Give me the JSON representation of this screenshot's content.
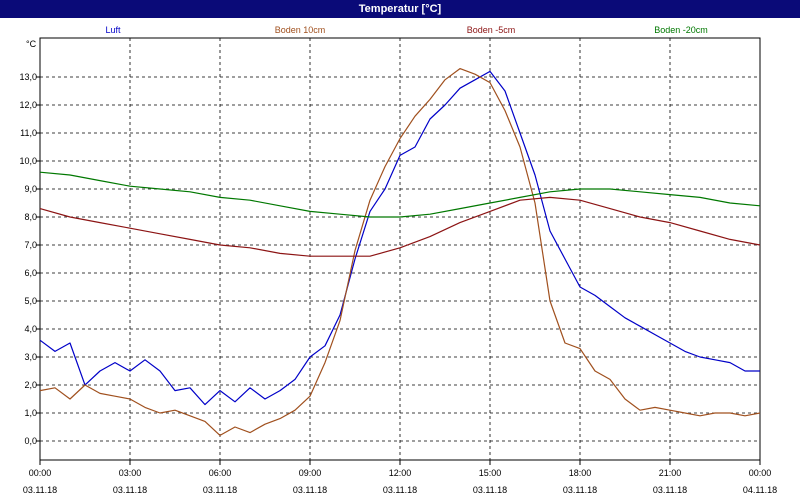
{
  "window": {
    "title": "Temperatur [°C]"
  },
  "chart_data": {
    "type": "line",
    "title": "Temperatur [°C]",
    "ylabel": "°C",
    "ylim": [
      -1,
      14
    ],
    "xlim_hours": [
      0,
      24
    ],
    "grid": true,
    "legend_placement": "top",
    "y_ticks": [
      "0,0",
      "1,0",
      "2,0",
      "3,0",
      "4,0",
      "5,0",
      "6,0",
      "7,0",
      "8,0",
      "9,0",
      "10,0",
      "11,0",
      "12,0",
      "13,0"
    ],
    "x_ticks": [
      {
        "time": "00:00",
        "date": "03.11.18"
      },
      {
        "time": "03:00",
        "date": "03.11.18"
      },
      {
        "time": "06:00",
        "date": "03.11.18"
      },
      {
        "time": "09:00",
        "date": "03.11.18"
      },
      {
        "time": "12:00",
        "date": "03.11.18"
      },
      {
        "time": "15:00",
        "date": "03.11.18"
      },
      {
        "time": "18:00",
        "date": "03.11.18"
      },
      {
        "time": "21:00",
        "date": "03.11.18"
      },
      {
        "time": "00:00",
        "date": "04.11.18"
      }
    ],
    "series": [
      {
        "name": "Luft",
        "color": "#0000c8",
        "x": [
          0,
          0.5,
          1,
          1.5,
          2,
          2.5,
          3,
          3.5,
          4,
          4.5,
          5,
          5.5,
          6,
          6.5,
          7,
          7.5,
          8,
          8.5,
          9,
          9.5,
          10,
          10.5,
          11,
          11.5,
          12,
          12.5,
          13,
          13.5,
          14,
          14.5,
          15,
          15.5,
          16,
          16.5,
          17,
          17.5,
          18,
          18.5,
          19,
          19.5,
          20,
          20.5,
          21,
          21.5,
          22,
          22.5,
          23,
          23.5,
          24
        ],
        "y": [
          3.6,
          3.2,
          3.5,
          2.0,
          2.5,
          2.8,
          2.5,
          2.9,
          2.5,
          1.8,
          1.9,
          1.3,
          1.8,
          1.4,
          1.9,
          1.5,
          1.8,
          2.2,
          3.0,
          3.4,
          4.5,
          6.5,
          8.2,
          9.0,
          10.2,
          10.5,
          11.5,
          12.0,
          12.6,
          12.9,
          13.2,
          12.5,
          11.0,
          9.5,
          7.5,
          6.5,
          5.5,
          5.2,
          4.8,
          4.4,
          4.1,
          3.8,
          3.5,
          3.2,
          3.0,
          2.9,
          2.8,
          2.5,
          2.5
        ]
      },
      {
        "name": "Boden 10cm",
        "color": "#a0501e",
        "x": [
          0,
          0.5,
          1,
          1.5,
          2,
          2.5,
          3,
          3.5,
          4,
          4.5,
          5,
          5.5,
          6,
          6.5,
          7,
          7.5,
          8,
          8.5,
          9,
          9.5,
          10,
          10.5,
          11,
          11.5,
          12,
          12.5,
          13,
          13.5,
          14,
          14.5,
          15,
          15.5,
          16,
          16.5,
          17,
          17.5,
          18,
          18.5,
          19,
          19.5,
          20,
          20.5,
          21,
          21.5,
          22,
          22.5,
          23,
          23.5,
          24
        ],
        "y": [
          1.8,
          1.9,
          1.5,
          2.0,
          1.7,
          1.6,
          1.5,
          1.2,
          1.0,
          1.1,
          0.9,
          0.7,
          0.2,
          0.5,
          0.3,
          0.6,
          0.8,
          1.1,
          1.6,
          2.8,
          4.3,
          6.8,
          8.6,
          9.8,
          10.8,
          11.6,
          12.2,
          12.9,
          13.3,
          13.1,
          12.8,
          11.8,
          10.5,
          8.5,
          5.0,
          3.5,
          3.3,
          2.5,
          2.2,
          1.5,
          1.1,
          1.2,
          1.1,
          1.0,
          0.9,
          1.0,
          1.0,
          0.9,
          1.0
        ]
      },
      {
        "name": "Boden -5cm",
        "color": "#8c1414",
        "x": [
          0,
          1,
          2,
          3,
          4,
          5,
          6,
          7,
          8,
          9,
          10,
          11,
          12,
          13,
          14,
          15,
          16,
          17,
          18,
          19,
          20,
          21,
          22,
          23,
          24
        ],
        "y": [
          8.3,
          8.0,
          7.8,
          7.6,
          7.4,
          7.2,
          7.0,
          6.9,
          6.7,
          6.6,
          6.6,
          6.6,
          6.9,
          7.3,
          7.8,
          8.2,
          8.6,
          8.7,
          8.6,
          8.3,
          8.0,
          7.8,
          7.5,
          7.2,
          7.0
        ]
      },
      {
        "name": "Boden -20cm",
        "color": "#007800",
        "x": [
          0,
          1,
          2,
          3,
          4,
          5,
          6,
          7,
          8,
          9,
          10,
          11,
          12,
          13,
          14,
          15,
          16,
          17,
          18,
          19,
          20,
          21,
          22,
          23,
          24
        ],
        "y": [
          9.6,
          9.5,
          9.3,
          9.1,
          9.0,
          8.9,
          8.7,
          8.6,
          8.4,
          8.2,
          8.1,
          8.0,
          8.0,
          8.1,
          8.3,
          8.5,
          8.7,
          8.9,
          9.0,
          9.0,
          8.9,
          8.8,
          8.7,
          8.5,
          8.4
        ]
      }
    ]
  }
}
